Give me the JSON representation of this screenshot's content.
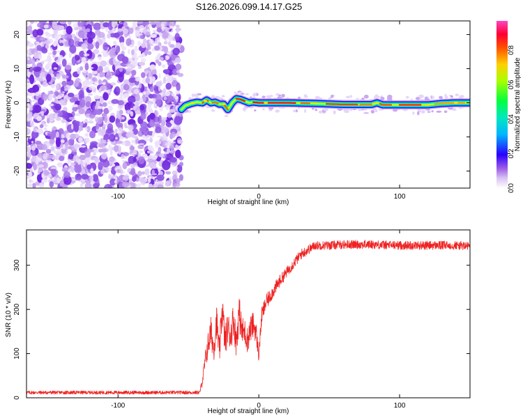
{
  "title": "S126.2026.099.14.17.G25",
  "chart_data": [
    {
      "type": "heatmap",
      "xlabel": "Height of straight line (km)",
      "ylabel": "Frequency (Hz)",
      "xlim": [
        -165,
        150
      ],
      "ylim": [
        -25,
        24
      ],
      "xticks": [
        -100,
        0,
        100
      ],
      "yticks": [
        -20,
        -10,
        0,
        10,
        20
      ],
      "noise_region_x": [
        -165,
        -55
      ],
      "signal_region_x": [
        -55,
        150
      ],
      "trace": {
        "x": [
          -55,
          -52,
          -48,
          -44,
          -40,
          -37,
          -34,
          -31,
          -28,
          -25,
          -22,
          -19,
          -16,
          -13,
          -10,
          -7,
          -4,
          0,
          20,
          40,
          60,
          80,
          84,
          88,
          100,
          120,
          130,
          140,
          150
        ],
        "y": [
          -2.0,
          -0.8,
          -0.2,
          0.2,
          0.0,
          0.8,
          0.0,
          0.2,
          -0.4,
          -0.4,
          -2.0,
          0.0,
          1.2,
          1.0,
          0.5,
          0.0,
          0.2,
          0.0,
          0.0,
          -0.2,
          -0.5,
          -0.5,
          0.0,
          -0.6,
          -0.6,
          -0.6,
          -0.2,
          0.0,
          0.0
        ]
      },
      "colorbar": {
        "label": "Normalized spectral amplitude",
        "range": [
          0,
          0.97
        ],
        "ticks": [
          0.0,
          0.2,
          0.4,
          0.6,
          0.8
        ],
        "tick_labels": [
          "0.0",
          "0.2",
          "0.4",
          "0.6",
          "0.8"
        ],
        "colors": [
          "#ffffff",
          "#d9c2f2",
          "#7f2fe0",
          "#2a00ff",
          "#00c8ff",
          "#00ff60",
          "#c8ff00",
          "#ffb000",
          "#ff2000",
          "#ff44c0"
        ]
      }
    },
    {
      "type": "line",
      "xlabel": "Height of straight line (km)",
      "ylabel": "SNR (10 * v/v)",
      "xlim": [
        -165,
        150
      ],
      "ylim": [
        0,
        380
      ],
      "xticks": [
        -100,
        0,
        100
      ],
      "yticks": [
        0,
        100,
        200,
        300
      ],
      "color": "#ee2222",
      "series": [
        {
          "name": "SNR",
          "x": [
            -165,
            -100,
            -60,
            -42,
            -40,
            -38,
            -36,
            -34,
            -32,
            -30,
            -28,
            -26,
            -24,
            -22,
            -20,
            -18,
            -16,
            -14,
            -12,
            -10,
            -8,
            -6,
            -4,
            -2,
            0,
            2,
            5,
            10,
            15,
            20,
            25,
            30,
            40,
            50,
            60,
            80,
            100,
            120,
            140,
            150
          ],
          "y": [
            12,
            12,
            12,
            12,
            40,
            85,
            120,
            150,
            110,
            175,
            100,
            205,
            125,
            160,
            140,
            180,
            125,
            195,
            150,
            150,
            130,
            155,
            165,
            150,
            95,
            185,
            215,
            240,
            265,
            285,
            305,
            325,
            345,
            345,
            347,
            347,
            345,
            345,
            345,
            343
          ],
          "noise": [
            4,
            4,
            4,
            4,
            12,
            22,
            30,
            35,
            30,
            38,
            30,
            45,
            35,
            38,
            35,
            40,
            35,
            40,
            35,
            30,
            30,
            30,
            30,
            25,
            15,
            20,
            18,
            15,
            14,
            12,
            12,
            12,
            10,
            10,
            10,
            10,
            10,
            10,
            10,
            10
          ]
        }
      ]
    }
  ]
}
